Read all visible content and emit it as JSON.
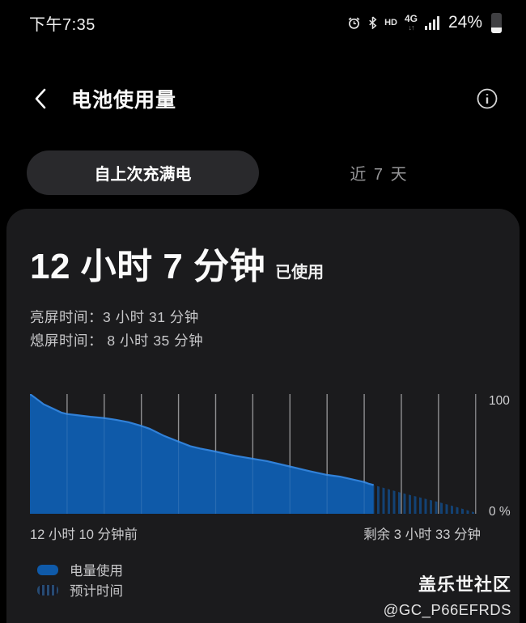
{
  "status_bar": {
    "time": "下午7:35",
    "hd_label": "HD",
    "network_label": "4G",
    "network_arrows": "↓↑",
    "battery_percent": "24%",
    "battery_level": 0.24,
    "icons": [
      "alarm-icon",
      "bluetooth-icon",
      "hd-icon",
      "network-4g-icon",
      "signal-icon",
      "battery-icon"
    ]
  },
  "header": {
    "title": "电池使用量"
  },
  "tabs": [
    {
      "label": "自上次充满电",
      "selected": true
    },
    {
      "label": "近 7 天",
      "selected": false
    }
  ],
  "usage": {
    "duration": "12 小时 7 分钟",
    "suffix": "已使用",
    "screen_on_line": "亮屏时间：3 小时 31 分钟",
    "screen_off_line": "熄屏时间： 8 小时 35 分钟"
  },
  "chart_data": {
    "type": "area",
    "title": "",
    "xlabel": "",
    "ylabel": "",
    "xlim": [
      0,
      15.72
    ],
    "ylim": [
      0,
      100
    ],
    "x_unit": "hours since last full charge",
    "grid_on": true,
    "grid_x_hours": [
      1.3,
      2.6,
      3.9,
      5.2,
      6.5,
      7.8,
      9.1,
      10.4,
      11.7,
      13.0,
      14.3
    ],
    "axis_x_hours": 15.6,
    "ytick_labels": [
      "100",
      "0 %"
    ],
    "x_left_label": "12 小时 10 分钟前",
    "x_right_label": "剩余 3 小时 33 分钟",
    "legend_position": "bottom-left",
    "series": [
      {
        "name": "电量使用",
        "style": "solid",
        "points": [
          [
            0.0,
            100
          ],
          [
            0.17,
            97
          ],
          [
            0.48,
            91.5
          ],
          [
            0.79,
            88
          ],
          [
            1.1,
            84.5
          ],
          [
            1.3,
            83.3
          ],
          [
            1.59,
            82.5
          ],
          [
            2.12,
            81
          ],
          [
            2.58,
            80
          ],
          [
            3.0,
            78.5
          ],
          [
            3.45,
            76.5
          ],
          [
            3.88,
            73.5
          ],
          [
            4.19,
            71
          ],
          [
            4.53,
            67
          ],
          [
            4.7,
            65
          ],
          [
            5.18,
            60.5
          ],
          [
            5.61,
            56.5
          ],
          [
            5.95,
            54.5
          ],
          [
            6.48,
            52
          ],
          [
            7.16,
            48.5
          ],
          [
            7.79,
            46
          ],
          [
            8.3,
            44
          ],
          [
            9.09,
            39.5
          ],
          [
            9.71,
            36
          ],
          [
            10.39,
            32.5
          ],
          [
            10.85,
            31
          ],
          [
            11.7,
            26.5
          ],
          [
            11.87,
            25
          ],
          [
            12.03,
            24
          ]
        ]
      },
      {
        "name": "预计时间",
        "style": "hatched",
        "points": [
          [
            12.03,
            24
          ],
          [
            13.0,
            17.5
          ],
          [
            14.27,
            10
          ],
          [
            14.95,
            5.5
          ],
          [
            15.6,
            0.8
          ],
          [
            15.66,
            0
          ]
        ]
      }
    ],
    "colors": {
      "area": "#0f5aa9",
      "edge": "#3181d8",
      "grid": "#a2a2a4",
      "tick": "#cfcfd1"
    }
  },
  "legend": {
    "items": [
      {
        "label": "电量使用",
        "swatch": "solid"
      },
      {
        "label": "预计时间",
        "swatch": "striped"
      }
    ]
  },
  "watermark": {
    "line1": "盖乐世社区",
    "line2": "@GC_P66EFRDS"
  }
}
